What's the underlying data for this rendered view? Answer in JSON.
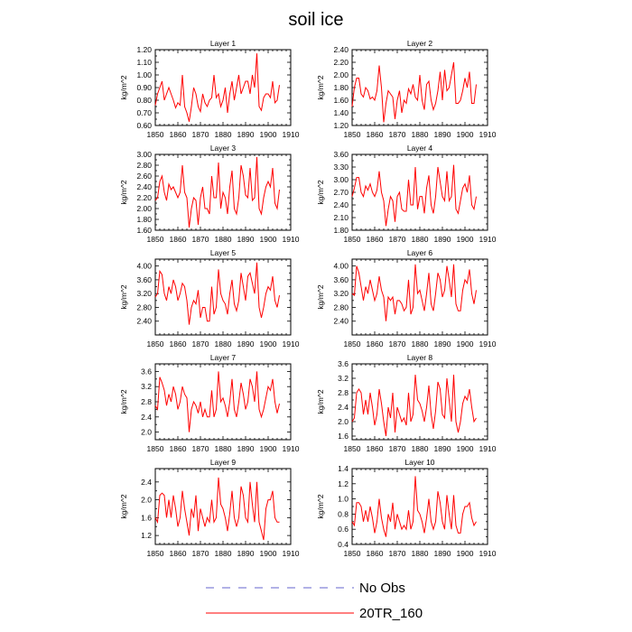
{
  "title": "soil ice",
  "legend": [
    {
      "label": "No Obs",
      "color": "#6666cc",
      "style": "dashed"
    },
    {
      "label": "20TR_160",
      "color": "#ff0000",
      "style": "solid"
    }
  ],
  "chart_data": [
    {
      "type": "line",
      "title": "Layer 1",
      "ylabel": "kg/m^2",
      "xlim": [
        1850,
        1910
      ],
      "x_ticks": [
        "1850",
        "1860",
        "1870",
        "1880",
        "1890",
        "1900",
        "1910"
      ],
      "ylim": [
        0.6,
        1.2
      ],
      "y_ticks": [
        "0.60",
        "0.70",
        "0.80",
        "0.90",
        "1.00",
        "1.10",
        "1.20"
      ],
      "series": [
        {
          "color": "#ff0000",
          "x_start": 1850,
          "values": [
            0.76,
            0.85,
            0.9,
            0.95,
            0.8,
            0.85,
            0.9,
            0.85,
            0.8,
            0.74,
            0.78,
            0.76,
            1.0,
            0.75,
            0.7,
            0.63,
            0.75,
            0.9,
            0.85,
            0.75,
            0.71,
            0.85,
            0.78,
            0.75,
            0.8,
            0.82,
            1.0,
            0.82,
            0.85,
            0.75,
            0.8,
            0.9,
            0.7,
            0.85,
            0.95,
            0.8,
            0.9,
            1.0,
            0.85,
            0.9,
            0.95,
            0.95,
            0.85,
            1.0,
            0.9,
            1.17,
            0.75,
            0.72,
            0.82,
            0.85,
            0.85,
            0.82,
            0.95,
            0.78,
            0.8,
            0.92
          ]
        }
      ]
    },
    {
      "type": "line",
      "title": "Layer 2",
      "ylabel": "kg/m^2",
      "xlim": [
        1850,
        1910
      ],
      "x_ticks": [
        "1850",
        "1860",
        "1870",
        "1880",
        "1890",
        "1900",
        "1910"
      ],
      "ylim": [
        1.2,
        2.4
      ],
      "y_ticks": [
        "1.20",
        "1.40",
        "1.60",
        "1.80",
        "2.00",
        "2.20",
        "2.40"
      ],
      "series": [
        {
          "color": "#ff0000",
          "x_start": 1850,
          "values": [
            1.5,
            1.8,
            1.95,
            1.95,
            1.7,
            1.65,
            1.8,
            1.75,
            1.62,
            1.65,
            1.6,
            1.75,
            2.15,
            1.8,
            1.25,
            1.55,
            1.75,
            1.7,
            1.65,
            1.3,
            1.6,
            1.75,
            1.4,
            1.6,
            1.55,
            1.78,
            1.7,
            1.85,
            1.65,
            1.6,
            2.0,
            1.6,
            1.45,
            1.85,
            1.9,
            1.6,
            1.45,
            1.55,
            1.75,
            2.05,
            1.6,
            2.08,
            1.75,
            1.8,
            2.0,
            2.2,
            1.55,
            1.55,
            1.6,
            1.75,
            1.95,
            1.8,
            2.05,
            1.55,
            1.55,
            1.85
          ]
        }
      ]
    },
    {
      "type": "line",
      "title": "Layer 3",
      "ylabel": "kg/m^2",
      "xlim": [
        1850,
        1910
      ],
      "x_ticks": [
        "1850",
        "1860",
        "1870",
        "1880",
        "1890",
        "1900",
        "1910"
      ],
      "ylim": [
        1.6,
        3.0
      ],
      "y_ticks": [
        "1.60",
        "1.80",
        "2.00",
        "2.20",
        "2.40",
        "2.60",
        "2.80",
        "3.00"
      ],
      "series": [
        {
          "color": "#ff0000",
          "x_start": 1850,
          "values": [
            2.15,
            2.2,
            2.5,
            2.6,
            2.3,
            2.15,
            2.45,
            2.35,
            2.4,
            2.3,
            2.2,
            2.3,
            2.8,
            2.3,
            2.2,
            1.65,
            2.0,
            2.2,
            2.15,
            1.7,
            2.2,
            2.4,
            2.0,
            2.0,
            1.9,
            2.6,
            2.2,
            2.2,
            2.85,
            2.0,
            2.3,
            2.2,
            1.9,
            2.4,
            2.7,
            2.0,
            1.9,
            2.2,
            2.8,
            2.6,
            2.25,
            2.2,
            2.75,
            2.15,
            2.2,
            2.95,
            2.0,
            1.9,
            2.2,
            2.4,
            2.5,
            2.4,
            2.75,
            2.1,
            2.0,
            2.35
          ]
        }
      ]
    },
    {
      "type": "line",
      "title": "Layer 4",
      "ylabel": "kg/m^2",
      "xlim": [
        1850,
        1910
      ],
      "x_ticks": [
        "1850",
        "1860",
        "1870",
        "1880",
        "1890",
        "1900",
        "1910"
      ],
      "ylim": [
        1.8,
        3.6
      ],
      "y_ticks": [
        "1.80",
        "2.10",
        "2.40",
        "2.70",
        "3.00",
        "3.30",
        "3.60"
      ],
      "series": [
        {
          "color": "#ff0000",
          "x_start": 1850,
          "values": [
            2.6,
            2.8,
            3.05,
            3.05,
            2.7,
            2.6,
            2.85,
            2.75,
            2.9,
            2.7,
            2.6,
            2.75,
            3.2,
            2.7,
            2.5,
            1.9,
            2.3,
            2.6,
            2.5,
            2.0,
            2.6,
            2.7,
            2.3,
            2.25,
            2.25,
            3.0,
            2.4,
            2.4,
            3.3,
            2.3,
            2.6,
            2.6,
            2.2,
            2.8,
            3.1,
            2.4,
            2.2,
            2.6,
            3.3,
            2.95,
            2.6,
            2.5,
            3.2,
            2.5,
            2.6,
            3.35,
            2.3,
            2.2,
            2.5,
            2.8,
            2.9,
            2.7,
            3.1,
            2.4,
            2.3,
            2.6
          ]
        }
      ]
    },
    {
      "type": "line",
      "title": "Layer 5",
      "ylabel": "kg/m^2",
      "xlim": [
        1850,
        1910
      ],
      "x_ticks": [
        "1850",
        "1860",
        "1870",
        "1880",
        "1890",
        "1900",
        "1910"
      ],
      "ylim": [
        2.0,
        4.2
      ],
      "y_ticks": [
        "2.40",
        "2.80",
        "3.20",
        "3.60",
        "4.00"
      ],
      "series": [
        {
          "color": "#ff0000",
          "x_start": 1850,
          "values": [
            3.1,
            3.2,
            3.85,
            3.75,
            3.2,
            3.0,
            3.4,
            3.2,
            3.6,
            3.4,
            3.0,
            3.2,
            3.5,
            3.4,
            3.0,
            2.3,
            2.8,
            3.0,
            2.9,
            3.3,
            2.5,
            2.8,
            2.8,
            2.4,
            2.4,
            3.4,
            2.6,
            2.8,
            3.9,
            3.2,
            3.0,
            2.9,
            2.6,
            3.2,
            3.6,
            2.9,
            2.7,
            3.0,
            3.8,
            3.4,
            3.0,
            3.7,
            3.8,
            3.5,
            3.2,
            4.1,
            2.8,
            2.5,
            2.8,
            3.2,
            3.4,
            3.3,
            3.7,
            3.0,
            2.8,
            3.15
          ]
        }
      ]
    },
    {
      "type": "line",
      "title": "Layer 6",
      "ylabel": "kg/m^2",
      "xlim": [
        1850,
        1910
      ],
      "x_ticks": [
        "1850",
        "1860",
        "1870",
        "1880",
        "1890",
        "1900",
        "1910"
      ],
      "ylim": [
        2.0,
        4.2
      ],
      "y_ticks": [
        "2.40",
        "2.80",
        "3.20",
        "3.60",
        "4.00"
      ],
      "series": [
        {
          "color": "#ff0000",
          "x_start": 1850,
          "values": [
            3.2,
            3.15,
            4.0,
            3.8,
            3.4,
            3.0,
            3.4,
            3.2,
            3.6,
            3.3,
            3.0,
            3.2,
            3.7,
            3.3,
            3.1,
            2.4,
            3.1,
            3.0,
            3.1,
            2.6,
            3.0,
            3.0,
            2.9,
            2.7,
            2.8,
            3.6,
            2.6,
            2.8,
            4.05,
            3.2,
            3.3,
            3.0,
            2.7,
            3.2,
            3.8,
            2.9,
            2.7,
            3.2,
            3.8,
            3.6,
            3.1,
            3.3,
            4.0,
            3.6,
            3.1,
            4.05,
            2.9,
            2.7,
            2.7,
            3.3,
            3.6,
            3.5,
            3.9,
            3.2,
            2.9,
            3.3
          ]
        }
      ]
    },
    {
      "type": "line",
      "title": "Layer 7",
      "ylabel": "kg/m^2",
      "xlim": [
        1850,
        1910
      ],
      "x_ticks": [
        "1850",
        "1860",
        "1870",
        "1880",
        "1890",
        "1900",
        "1910"
      ],
      "ylim": [
        1.8,
        3.8
      ],
      "y_ticks": [
        "2.0",
        "2.4",
        "2.8",
        "3.2",
        "3.6"
      ],
      "series": [
        {
          "color": "#ff0000",
          "x_start": 1850,
          "values": [
            2.7,
            2.6,
            3.45,
            3.3,
            3.1,
            2.7,
            3.0,
            2.8,
            3.2,
            3.0,
            2.6,
            2.8,
            3.2,
            3.0,
            2.9,
            2.0,
            2.6,
            2.8,
            2.7,
            2.5,
            2.8,
            2.4,
            2.6,
            2.4,
            2.4,
            3.1,
            2.4,
            2.6,
            3.6,
            2.8,
            2.9,
            2.7,
            2.4,
            2.8,
            3.4,
            2.6,
            2.4,
            2.8,
            3.3,
            3.0,
            2.6,
            2.8,
            3.4,
            3.2,
            2.8,
            3.6,
            2.6,
            2.4,
            2.6,
            2.9,
            3.2,
            3.1,
            3.4,
            2.8,
            2.5,
            2.75
          ]
        }
      ]
    },
    {
      "type": "line",
      "title": "Layer 8",
      "ylabel": "kg/m^2",
      "xlim": [
        1850,
        1910
      ],
      "x_ticks": [
        "1850",
        "1860",
        "1870",
        "1880",
        "1890",
        "1900",
        "1910"
      ],
      "ylim": [
        1.5,
        3.6
      ],
      "y_ticks": [
        "1.6",
        "2.0",
        "2.4",
        "2.8",
        "3.2",
        "3.6"
      ],
      "series": [
        {
          "color": "#ff0000",
          "x_start": 1850,
          "values": [
            2.0,
            2.1,
            2.8,
            2.9,
            2.8,
            2.2,
            2.6,
            2.2,
            2.8,
            2.4,
            1.9,
            2.2,
            2.9,
            2.5,
            2.0,
            1.6,
            2.4,
            2.1,
            2.8,
            1.7,
            2.4,
            2.2,
            2.0,
            2.1,
            1.9,
            2.8,
            2.0,
            2.2,
            3.3,
            2.6,
            2.5,
            2.3,
            2.0,
            2.4,
            3.0,
            2.2,
            1.8,
            2.3,
            3.1,
            2.9,
            2.2,
            2.1,
            3.2,
            2.6,
            2.0,
            3.3,
            2.0,
            1.7,
            2.0,
            2.5,
            2.7,
            2.6,
            2.9,
            2.4,
            2.0,
            2.1
          ]
        }
      ]
    },
    {
      "type": "line",
      "title": "Layer 9",
      "ylabel": "kg/m^2",
      "xlim": [
        1850,
        1910
      ],
      "x_ticks": [
        "1850",
        "1860",
        "1870",
        "1880",
        "1890",
        "1900",
        "1910"
      ],
      "ylim": [
        1.0,
        2.7
      ],
      "y_ticks": [
        "1.2",
        "1.6",
        "2.0",
        "2.4"
      ],
      "series": [
        {
          "color": "#ff0000",
          "x_start": 1850,
          "values": [
            1.6,
            1.5,
            2.1,
            2.15,
            2.1,
            1.6,
            2.0,
            1.6,
            2.1,
            1.8,
            1.4,
            1.6,
            2.2,
            1.8,
            1.5,
            1.2,
            1.8,
            1.6,
            2.1,
            1.3,
            1.8,
            1.6,
            1.4,
            1.6,
            1.5,
            2.0,
            1.5,
            1.6,
            2.5,
            1.9,
            1.8,
            1.6,
            1.3,
            1.7,
            2.2,
            1.6,
            1.4,
            1.6,
            2.3,
            2.1,
            1.6,
            1.5,
            2.4,
            1.9,
            1.5,
            2.4,
            1.5,
            1.3,
            1.1,
            1.8,
            2.0,
            2.0,
            2.2,
            1.6,
            1.5,
            1.5
          ]
        }
      ]
    },
    {
      "type": "line",
      "title": "Layer 10",
      "ylabel": "kg/m^2",
      "xlim": [
        1850,
        1910
      ],
      "x_ticks": [
        "1850",
        "1860",
        "1870",
        "1880",
        "1890",
        "1900",
        "1910"
      ],
      "ylim": [
        0.4,
        1.4
      ],
      "y_ticks": [
        "0.4",
        "0.6",
        "0.8",
        "1.0",
        "1.2",
        "1.4"
      ],
      "series": [
        {
          "color": "#ff0000",
          "x_start": 1850,
          "values": [
            0.7,
            0.65,
            0.95,
            0.95,
            0.9,
            0.7,
            0.85,
            0.7,
            0.9,
            0.75,
            0.55,
            0.7,
            1.0,
            0.75,
            0.6,
            0.5,
            0.8,
            0.7,
            0.95,
            0.6,
            0.8,
            0.7,
            0.6,
            0.65,
            0.6,
            0.85,
            0.6,
            0.7,
            1.3,
            0.85,
            0.8,
            0.7,
            0.55,
            0.75,
            1.0,
            0.7,
            0.6,
            0.7,
            1.1,
            0.95,
            0.7,
            0.6,
            1.05,
            0.8,
            0.6,
            1.05,
            0.65,
            0.55,
            0.55,
            0.8,
            0.9,
            0.9,
            0.95,
            0.75,
            0.65,
            0.7
          ]
        }
      ]
    }
  ]
}
